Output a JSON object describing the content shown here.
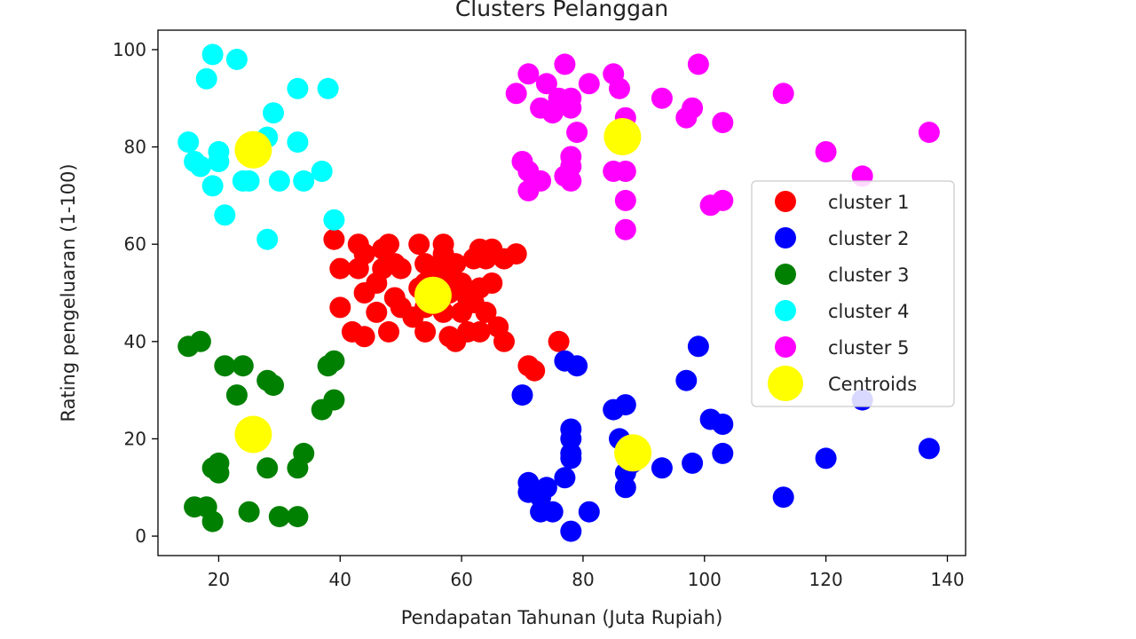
{
  "chart_data": {
    "type": "scatter",
    "title": "Clusters Pelanggan",
    "xlabel": "Pendapatan Tahunan (Juta Rupiah)",
    "ylabel": "Rating pengeluaran (1-100)",
    "xlim": [
      10,
      143
    ],
    "ylim": [
      -4,
      104
    ],
    "xticks": [
      20,
      40,
      60,
      80,
      100,
      120,
      140
    ],
    "yticks": [
      0,
      20,
      40,
      60,
      80,
      100
    ],
    "grid": false,
    "legend_position": "center-right",
    "series": [
      {
        "name": "cluster 1",
        "color": "#ff0000",
        "points": [
          [
            39,
            61
          ],
          [
            43,
            60
          ],
          [
            40,
            55
          ],
          [
            43,
            55
          ],
          [
            40,
            47
          ],
          [
            42,
            42
          ],
          [
            44,
            41
          ],
          [
            44,
            50
          ],
          [
            46,
            52
          ],
          [
            46,
            46
          ],
          [
            47,
            55
          ],
          [
            47,
            59
          ],
          [
            48,
            60
          ],
          [
            48,
            42
          ],
          [
            49,
            49
          ],
          [
            49,
            56
          ],
          [
            50,
            55
          ],
          [
            50,
            47
          ],
          [
            53,
            60
          ],
          [
            53,
            51
          ],
          [
            54,
            56
          ],
          [
            54,
            42
          ],
          [
            54,
            47
          ],
          [
            54,
            52
          ],
          [
            55,
            55
          ],
          [
            57,
            58
          ],
          [
            57,
            60
          ],
          [
            57,
            46
          ],
          [
            57,
            52
          ],
          [
            58,
            41
          ],
          [
            58,
            50
          ],
          [
            58,
            55
          ],
          [
            59,
            40
          ],
          [
            60,
            46
          ],
          [
            60,
            52
          ],
          [
            61,
            42
          ],
          [
            61,
            49
          ],
          [
            62,
            48
          ],
          [
            62,
            57
          ],
          [
            63,
            59
          ],
          [
            63,
            42
          ],
          [
            63,
            51
          ],
          [
            64,
            57
          ],
          [
            64,
            46
          ],
          [
            65,
            52
          ],
          [
            65,
            59
          ],
          [
            66,
            43
          ],
          [
            67,
            57
          ],
          [
            67,
            40
          ],
          [
            69,
            58
          ],
          [
            71,
            35
          ],
          [
            72,
            34
          ],
          [
            76,
            40
          ],
          [
            44,
            58
          ],
          [
            52,
            45
          ],
          [
            59,
            56
          ]
        ]
      },
      {
        "name": "cluster 2",
        "color": "#0000ff",
        "points": [
          [
            70,
            29
          ],
          [
            71,
            11
          ],
          [
            71,
            9
          ],
          [
            73,
            5
          ],
          [
            73,
            8
          ],
          [
            74,
            10
          ],
          [
            75,
            5
          ],
          [
            77,
            36
          ],
          [
            77,
            12
          ],
          [
            78,
            22
          ],
          [
            78,
            17
          ],
          [
            78,
            20
          ],
          [
            78,
            16
          ],
          [
            78,
            1
          ],
          [
            79,
            35
          ],
          [
            81,
            5
          ],
          [
            85,
            26
          ],
          [
            86,
            20
          ],
          [
            87,
            27
          ],
          [
            87,
            10
          ],
          [
            87,
            13
          ],
          [
            88,
            15
          ],
          [
            93,
            14
          ],
          [
            97,
            32
          ],
          [
            98,
            15
          ],
          [
            99,
            39
          ],
          [
            101,
            24
          ],
          [
            103,
            23
          ],
          [
            103,
            17
          ],
          [
            113,
            8
          ],
          [
            120,
            16
          ],
          [
            126,
            28
          ],
          [
            137,
            18
          ]
        ]
      },
      {
        "name": "cluster 3",
        "color": "#008000",
        "points": [
          [
            15,
            39
          ],
          [
            16,
            6
          ],
          [
            17,
            40
          ],
          [
            18,
            6
          ],
          [
            19,
            3
          ],
          [
            19,
            14
          ],
          [
            20,
            15
          ],
          [
            20,
            13
          ],
          [
            21,
            35
          ],
          [
            23,
            29
          ],
          [
            24,
            35
          ],
          [
            25,
            5
          ],
          [
            28,
            32
          ],
          [
            28,
            14
          ],
          [
            29,
            31
          ],
          [
            30,
            4
          ],
          [
            33,
            4
          ],
          [
            33,
            14
          ],
          [
            34,
            17
          ],
          [
            37,
            26
          ],
          [
            38,
            35
          ],
          [
            39,
            36
          ],
          [
            39,
            28
          ]
        ]
      },
      {
        "name": "cluster 4",
        "color": "#00ffff",
        "points": [
          [
            15,
            81
          ],
          [
            16,
            77
          ],
          [
            17,
            76
          ],
          [
            18,
            94
          ],
          [
            19,
            72
          ],
          [
            19,
            99
          ],
          [
            20,
            77
          ],
          [
            20,
            79
          ],
          [
            21,
            66
          ],
          [
            23,
            98
          ],
          [
            24,
            73
          ],
          [
            25,
            73
          ],
          [
            28,
            82
          ],
          [
            28,
            61
          ],
          [
            29,
            87
          ],
          [
            30,
            73
          ],
          [
            33,
            92
          ],
          [
            33,
            81
          ],
          [
            34,
            73
          ],
          [
            37,
            75
          ],
          [
            38,
            92
          ],
          [
            39,
            65
          ]
        ]
      },
      {
        "name": "cluster 5",
        "color": "#ff00ff",
        "points": [
          [
            69,
            91
          ],
          [
            70,
            77
          ],
          [
            71,
            95
          ],
          [
            71,
            75
          ],
          [
            71,
            71
          ],
          [
            73,
            88
          ],
          [
            73,
            73
          ],
          [
            74,
            93
          ],
          [
            75,
            87
          ],
          [
            76,
            90
          ],
          [
            77,
            97
          ],
          [
            77,
            74
          ],
          [
            78,
            90
          ],
          [
            78,
            88
          ],
          [
            78,
            76
          ],
          [
            78,
            73
          ],
          [
            78,
            78
          ],
          [
            79,
            83
          ],
          [
            81,
            93
          ],
          [
            85,
            95
          ],
          [
            85,
            75
          ],
          [
            86,
            92
          ],
          [
            87,
            86
          ],
          [
            87,
            75
          ],
          [
            87,
            69
          ],
          [
            87,
            63
          ],
          [
            93,
            90
          ],
          [
            97,
            86
          ],
          [
            98,
            88
          ],
          [
            99,
            97
          ],
          [
            101,
            68
          ],
          [
            103,
            85
          ],
          [
            103,
            69
          ],
          [
            113,
            91
          ],
          [
            120,
            79
          ],
          [
            126,
            74
          ],
          [
            137,
            83
          ]
        ]
      },
      {
        "name": "Centroids",
        "color": "#ffff00",
        "marker": "large",
        "points": [
          [
            55.3,
            49.5
          ],
          [
            86.5,
            82.1
          ],
          [
            25.7,
            20.9
          ],
          [
            25.7,
            79.4
          ],
          [
            88.2,
            17.1
          ]
        ]
      }
    ]
  }
}
